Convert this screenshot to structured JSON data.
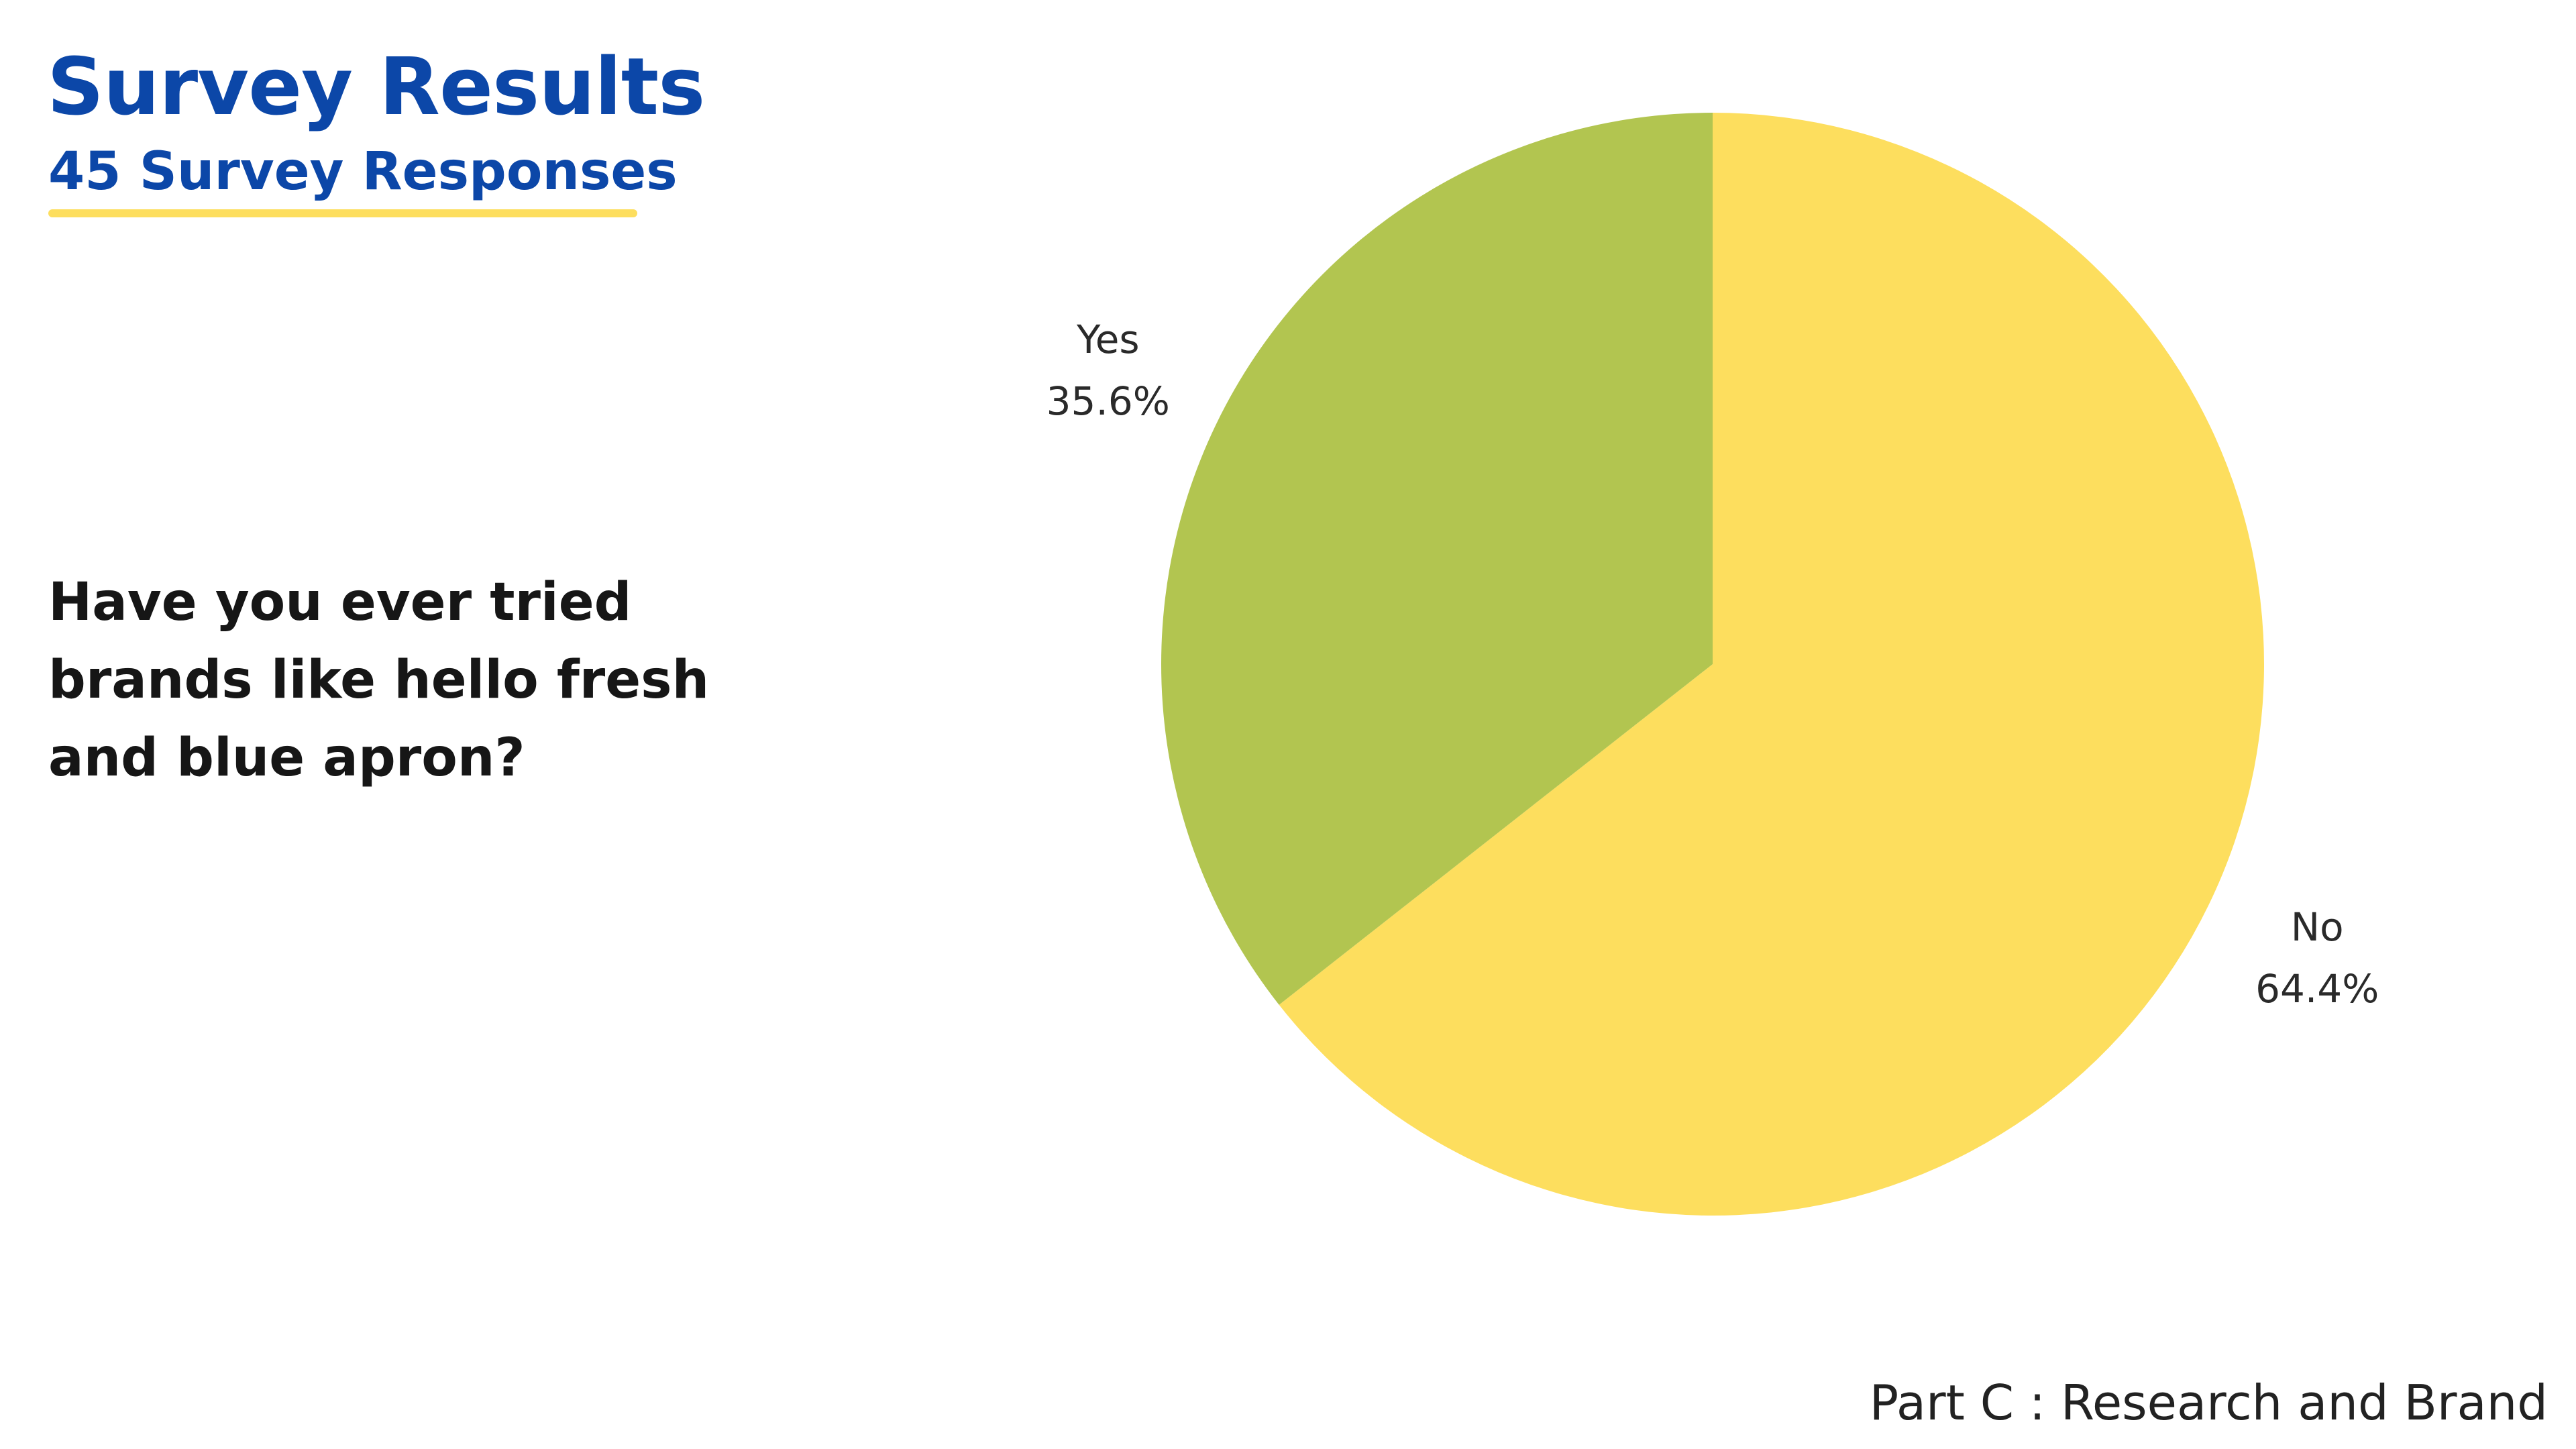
{
  "header": {
    "title": "Survey Results",
    "subtitle": "45 Survey Responses"
  },
  "question": "Have you ever tried brands like hello fresh and blue apron?",
  "footer": "Part C : Research and Brand",
  "colors": {
    "title": "#0C47A8",
    "underline": "#FDDE5E",
    "question": "#161616"
  },
  "chart_data": {
    "type": "pie",
    "title": "",
    "slices": [
      {
        "label": "No",
        "value": 64.4,
        "value_label": "64.4%",
        "color": "#FDDE5E"
      },
      {
        "label": "Yes",
        "value": 35.6,
        "value_label": "35.6%",
        "color": "#B2C550"
      }
    ]
  }
}
